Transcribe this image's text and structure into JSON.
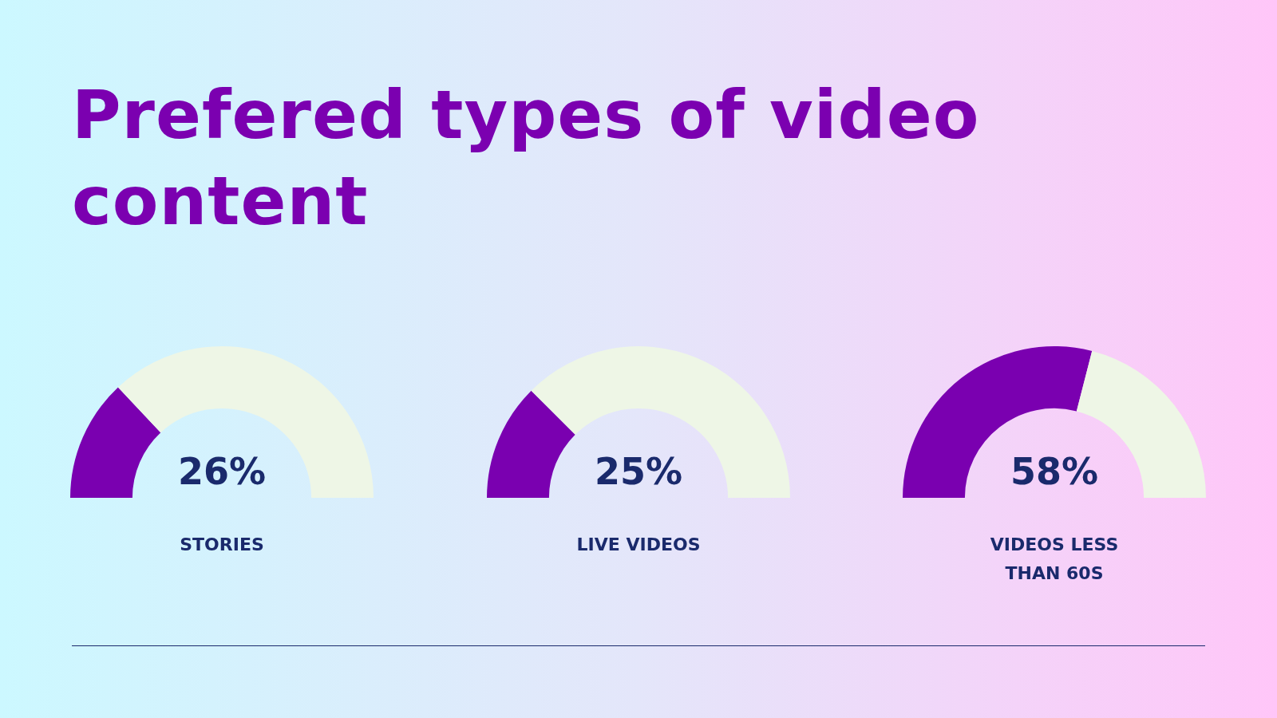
{
  "chart_data": [
    {
      "type": "other",
      "title": "Prefered types of video content"
    },
    {
      "type": "donut",
      "categories": [
        null,
        null
      ],
      "values": [
        26,
        74
      ],
      "colors": [
        "#7a00b0",
        "#eef6e6"
      ],
      "annotations": [
        "26%"
      ],
      "xlabel": "STORIES"
    },
    {
      "type": "donut",
      "categories": [
        null,
        null
      ],
      "values": [
        25,
        75
      ],
      "colors": [
        "#7a00b0",
        "#eef6e6"
      ],
      "annotations": [
        "25%"
      ],
      "xlabel": "LIVE VIDEOS"
    },
    {
      "type": "donut",
      "categories": [
        null,
        null
      ],
      "values": [
        58,
        42
      ],
      "colors": [
        "#7a00b0",
        "#eef6e6"
      ],
      "annotations": [
        "58%"
      ],
      "xlabel": "VIDEOS LESS THAN 60S"
    }
  ]
}
